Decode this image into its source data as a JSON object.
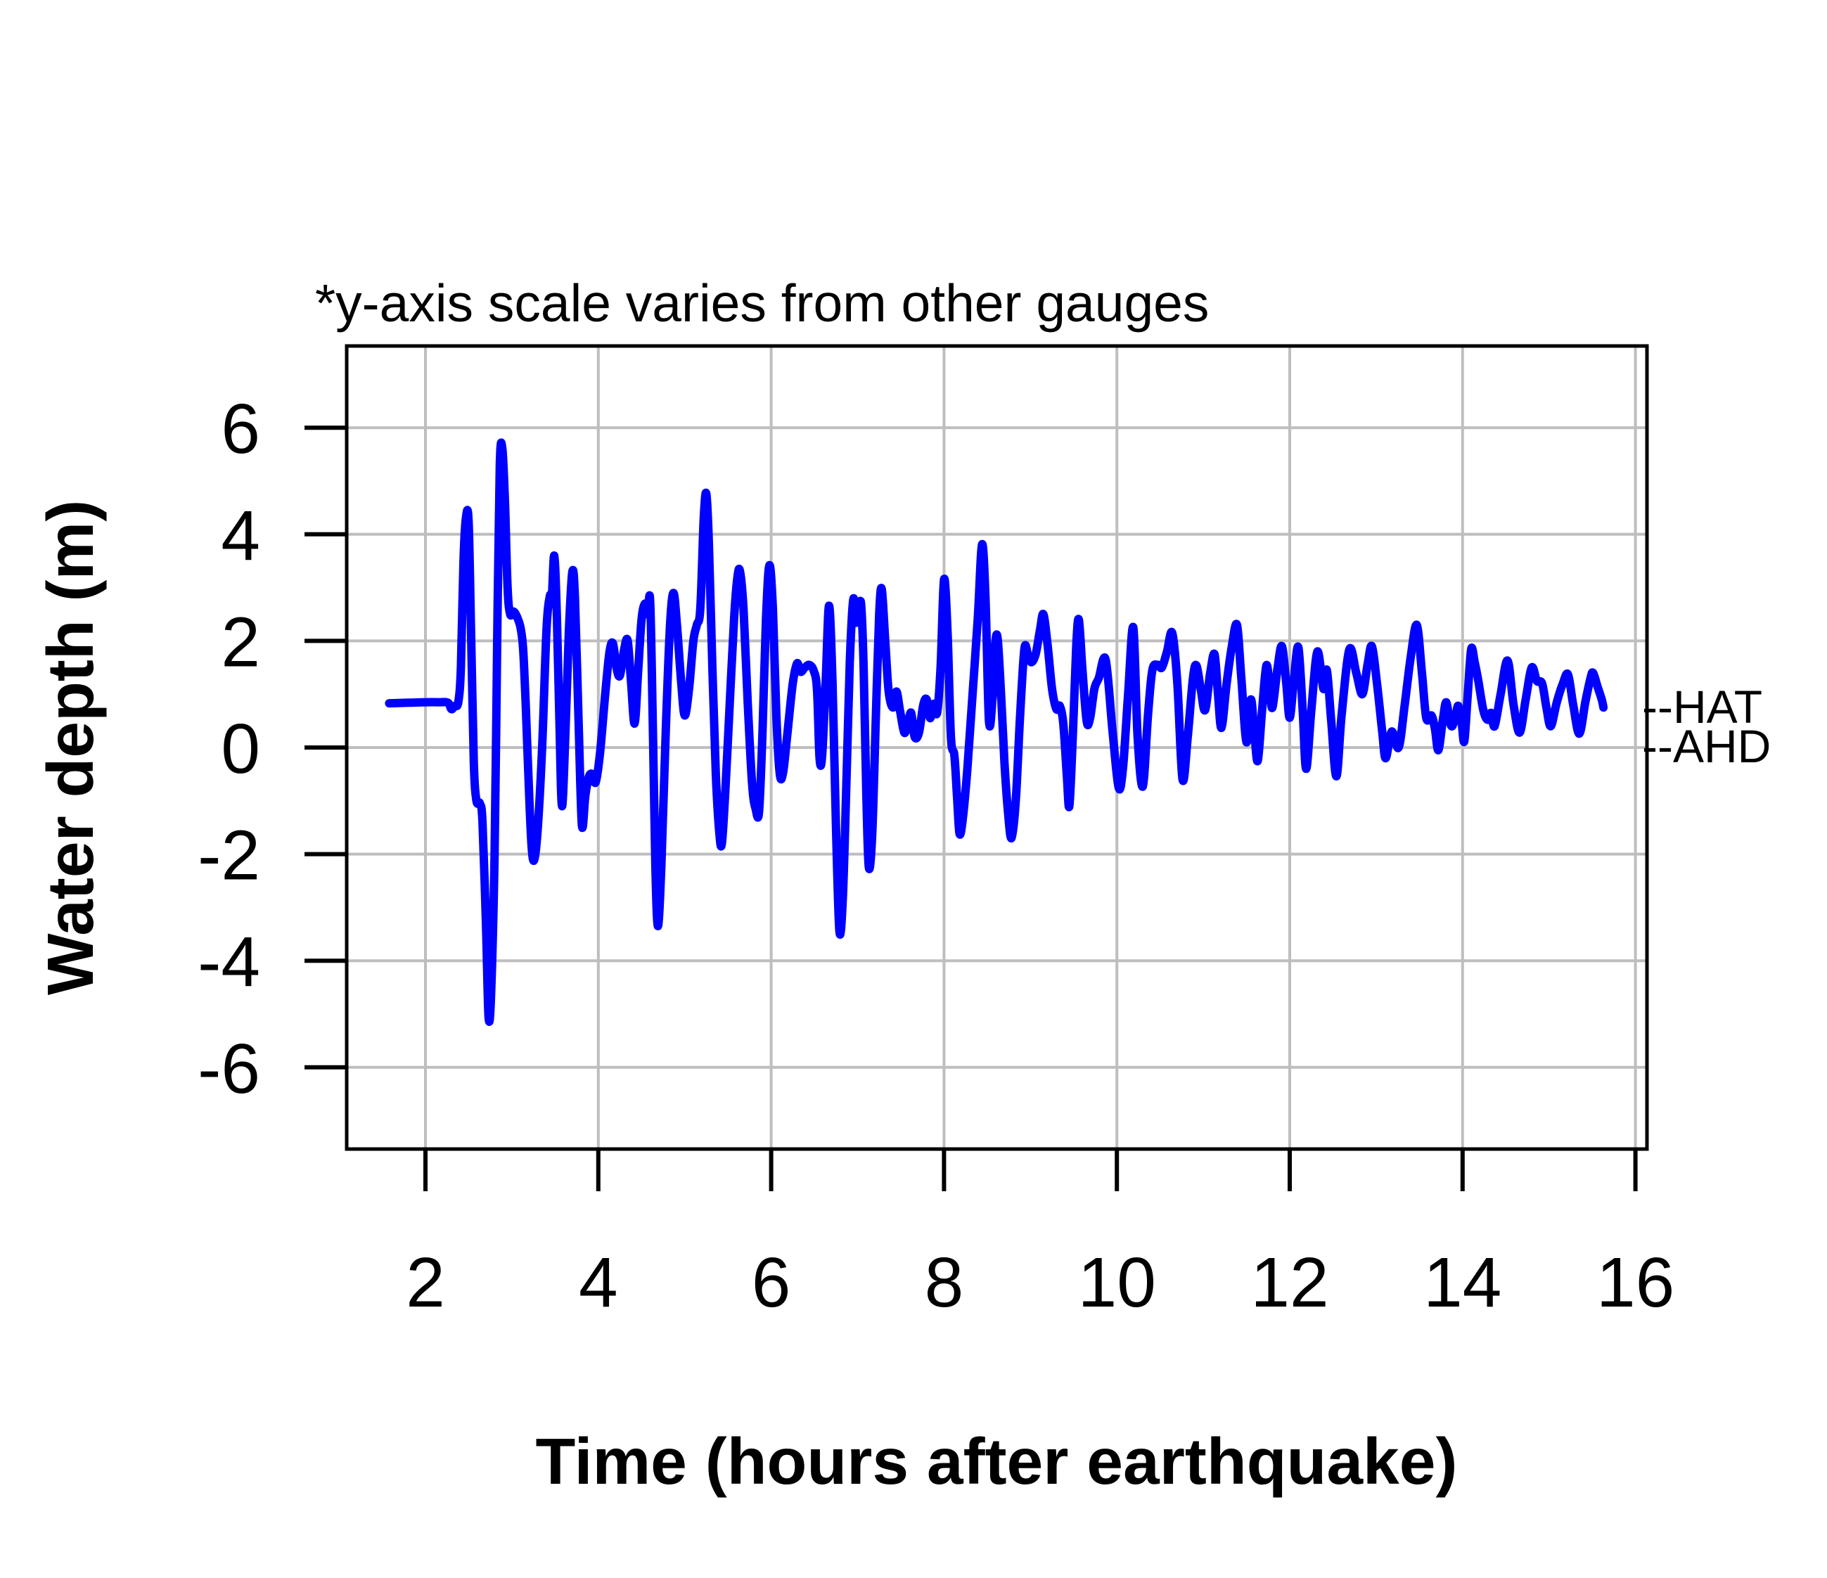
{
  "figure": {
    "annotation": "*y-axis scale varies from other gauges",
    "background": "#ffffff"
  },
  "chart_data": {
    "type": "line",
    "title": "*y-axis scale varies from other gauges",
    "xlabel": "Time (hours after earthquake)",
    "ylabel": "Water depth (m)",
    "xlim": [
      1.09,
      16.13
    ],
    "ylim": [
      -7.53,
      7.53
    ],
    "x_ticks": [
      2,
      4,
      6,
      8,
      10,
      12,
      14,
      16
    ],
    "y_ticks": [
      -6,
      -4,
      -2,
      0,
      2,
      4,
      6
    ],
    "grid": true,
    "legend_position": "none",
    "line_color": "#0000FF",
    "grid_color": "#BEBEBE",
    "axis_color": "#000000",
    "reference_levels": [
      {
        "label": "--HAT",
        "name": "hat",
        "value": 0.74
      },
      {
        "label": "--AHD",
        "name": "ahd",
        "value": 0.0
      }
    ],
    "series": [
      {
        "name": "water depth",
        "points": [
          [
            1.58,
            0.83
          ],
          [
            1.8,
            0.84
          ],
          [
            2.0,
            0.85
          ],
          [
            2.15,
            0.85
          ],
          [
            2.26,
            0.84
          ],
          [
            2.3,
            0.72
          ],
          [
            2.34,
            0.78
          ],
          [
            2.38,
            0.85
          ],
          [
            2.41,
            1.5
          ],
          [
            2.44,
            3.5
          ],
          [
            2.47,
            4.33
          ],
          [
            2.5,
            4.2
          ],
          [
            2.53,
            2.0
          ],
          [
            2.56,
            -0.3
          ],
          [
            2.59,
            -1.0
          ],
          [
            2.63,
            -1.05
          ],
          [
            2.66,
            -1.4
          ],
          [
            2.7,
            -3.3
          ],
          [
            2.73,
            -5.05
          ],
          [
            2.76,
            -4.6
          ],
          [
            2.8,
            -2.0
          ],
          [
            2.83,
            2.0
          ],
          [
            2.86,
            5.3
          ],
          [
            2.89,
            5.6
          ],
          [
            2.92,
            4.6
          ],
          [
            2.95,
            3.0
          ],
          [
            2.98,
            2.5
          ],
          [
            3.02,
            2.55
          ],
          [
            3.06,
            2.45
          ],
          [
            3.1,
            2.25
          ],
          [
            3.13,
            1.85
          ],
          [
            3.16,
            0.8
          ],
          [
            3.2,
            -0.9
          ],
          [
            3.23,
            -1.9
          ],
          [
            3.26,
            -2.1
          ],
          [
            3.3,
            -1.5
          ],
          [
            3.35,
            0.0
          ],
          [
            3.4,
            2.2
          ],
          [
            3.44,
            2.85
          ],
          [
            3.46,
            2.75
          ],
          [
            3.49,
            3.6
          ],
          [
            3.52,
            2.5
          ],
          [
            3.55,
            0.5
          ],
          [
            3.58,
            -1.1
          ],
          [
            3.62,
            0.3
          ],
          [
            3.66,
            2.2
          ],
          [
            3.7,
            3.3
          ],
          [
            3.73,
            2.8
          ],
          [
            3.77,
            0.6
          ],
          [
            3.81,
            -1.45
          ],
          [
            3.85,
            -0.9
          ],
          [
            3.89,
            -0.55
          ],
          [
            3.93,
            -0.5
          ],
          [
            3.97,
            -0.65
          ],
          [
            4.02,
            -0.1
          ],
          [
            4.08,
            1.0
          ],
          [
            4.13,
            1.8
          ],
          [
            4.17,
            1.95
          ],
          [
            4.21,
            1.5
          ],
          [
            4.25,
            1.35
          ],
          [
            4.3,
            1.85
          ],
          [
            4.34,
            2.0
          ],
          [
            4.38,
            1.2
          ],
          [
            4.42,
            0.45
          ],
          [
            4.46,
            1.4
          ],
          [
            4.5,
            2.4
          ],
          [
            4.54,
            2.7
          ],
          [
            4.57,
            2.5
          ],
          [
            4.6,
            2.75
          ],
          [
            4.63,
            0.5
          ],
          [
            4.66,
            -2.2
          ],
          [
            4.69,
            -3.35
          ],
          [
            4.73,
            -2.2
          ],
          [
            4.78,
            0.3
          ],
          [
            4.83,
            2.3
          ],
          [
            4.87,
            2.9
          ],
          [
            4.91,
            2.3
          ],
          [
            4.96,
            1.2
          ],
          [
            5.0,
            0.6
          ],
          [
            5.05,
            1.1
          ],
          [
            5.1,
            2.0
          ],
          [
            5.14,
            2.3
          ],
          [
            5.18,
            2.6
          ],
          [
            5.22,
            4.3
          ],
          [
            5.25,
            4.76
          ],
          [
            5.28,
            3.8
          ],
          [
            5.32,
            1.5
          ],
          [
            5.36,
            -0.5
          ],
          [
            5.4,
            -1.6
          ],
          [
            5.43,
            -1.8
          ],
          [
            5.47,
            -0.8
          ],
          [
            5.52,
            0.8
          ],
          [
            5.57,
            2.4
          ],
          [
            5.61,
            3.2
          ],
          [
            5.64,
            3.3
          ],
          [
            5.68,
            2.6
          ],
          [
            5.73,
            0.8
          ],
          [
            5.78,
            -0.7
          ],
          [
            5.82,
            -1.15
          ],
          [
            5.86,
            -1.2
          ],
          [
            5.9,
            0.3
          ],
          [
            5.94,
            2.4
          ],
          [
            5.98,
            3.42
          ],
          [
            6.02,
            2.6
          ],
          [
            6.06,
            0.6
          ],
          [
            6.1,
            -0.5
          ],
          [
            6.14,
            -0.45
          ],
          [
            6.19,
            0.3
          ],
          [
            6.25,
            1.2
          ],
          [
            6.3,
            1.58
          ],
          [
            6.34,
            1.42
          ],
          [
            6.39,
            1.5
          ],
          [
            6.44,
            1.55
          ],
          [
            6.49,
            1.45
          ],
          [
            6.53,
            1.1
          ],
          [
            6.56,
            -0.2
          ],
          [
            6.59,
            -0.15
          ],
          [
            6.63,
            1.2
          ],
          [
            6.67,
            2.66
          ],
          [
            6.71,
            1.2
          ],
          [
            6.75,
            -1.5
          ],
          [
            6.79,
            -3.45
          ],
          [
            6.83,
            -2.8
          ],
          [
            6.87,
            -0.7
          ],
          [
            6.91,
            1.6
          ],
          [
            6.95,
            2.78
          ],
          [
            6.98,
            2.35
          ],
          [
            7.01,
            2.5
          ],
          [
            7.04,
            2.7
          ],
          [
            7.07,
            1.5
          ],
          [
            7.1,
            -0.8
          ],
          [
            7.13,
            -2.25
          ],
          [
            7.17,
            -1.6
          ],
          [
            7.21,
            0.5
          ],
          [
            7.25,
            2.5
          ],
          [
            7.28,
            2.97
          ],
          [
            7.32,
            2.0
          ],
          [
            7.36,
            1.05
          ],
          [
            7.41,
            0.75
          ],
          [
            7.45,
            1.05
          ],
          [
            7.49,
            0.7
          ],
          [
            7.54,
            0.28
          ],
          [
            7.58,
            0.45
          ],
          [
            7.62,
            0.65
          ],
          [
            7.66,
            0.2
          ],
          [
            7.71,
            0.28
          ],
          [
            7.76,
            0.8
          ],
          [
            7.8,
            0.9
          ],
          [
            7.84,
            0.55
          ],
          [
            7.88,
            0.82
          ],
          [
            7.92,
            0.65
          ],
          [
            7.96,
            1.5
          ],
          [
            8.0,
            3.15
          ],
          [
            8.04,
            2.2
          ],
          [
            8.08,
            0.2
          ],
          [
            8.12,
            -0.15
          ],
          [
            8.15,
            -0.9
          ],
          [
            8.18,
            -1.62
          ],
          [
            8.22,
            -1.3
          ],
          [
            8.27,
            -0.4
          ],
          [
            8.33,
            1.0
          ],
          [
            8.39,
            2.4
          ],
          [
            8.44,
            3.81
          ],
          [
            8.48,
            2.8
          ],
          [
            8.52,
            0.5
          ],
          [
            8.56,
            0.9
          ],
          [
            8.59,
            1.9
          ],
          [
            8.62,
            2.05
          ],
          [
            8.66,
            1.0
          ],
          [
            8.7,
            -0.3
          ],
          [
            8.74,
            -1.2
          ],
          [
            8.78,
            -1.7
          ],
          [
            8.83,
            -1.0
          ],
          [
            8.88,
            0.6
          ],
          [
            8.93,
            1.85
          ],
          [
            8.97,
            1.75
          ],
          [
            9.01,
            1.6
          ],
          [
            9.06,
            1.75
          ],
          [
            9.11,
            2.2
          ],
          [
            9.15,
            2.5
          ],
          [
            9.2,
            1.9
          ],
          [
            9.25,
            1.1
          ],
          [
            9.3,
            0.72
          ],
          [
            9.34,
            0.78
          ],
          [
            9.38,
            0.45
          ],
          [
            9.42,
            -0.5
          ],
          [
            9.45,
            -1.1
          ],
          [
            9.49,
            0.2
          ],
          [
            9.53,
            1.9
          ],
          [
            9.56,
            2.4
          ],
          [
            9.6,
            1.5
          ],
          [
            9.65,
            0.5
          ],
          [
            9.69,
            0.55
          ],
          [
            9.74,
            1.1
          ],
          [
            9.79,
            1.3
          ],
          [
            9.87,
            1.65
          ],
          [
            9.95,
            0.3
          ],
          [
            10.02,
            -0.75
          ],
          [
            10.07,
            -0.4
          ],
          [
            10.13,
            1.0
          ],
          [
            10.19,
            2.25
          ],
          [
            10.24,
            0.2
          ],
          [
            10.3,
            -0.73
          ],
          [
            10.36,
            0.6
          ],
          [
            10.41,
            1.45
          ],
          [
            10.47,
            1.55
          ],
          [
            10.52,
            1.5
          ],
          [
            10.58,
            1.8
          ],
          [
            10.64,
            2.15
          ],
          [
            10.7,
            1.2
          ],
          [
            10.76,
            -0.6
          ],
          [
            10.82,
            0.2
          ],
          [
            10.88,
            1.3
          ],
          [
            10.92,
            1.54
          ],
          [
            10.97,
            1.1
          ],
          [
            11.02,
            0.7
          ],
          [
            11.08,
            1.4
          ],
          [
            11.13,
            1.75
          ],
          [
            11.17,
            1.0
          ],
          [
            11.21,
            0.37
          ],
          [
            11.27,
            1.2
          ],
          [
            11.33,
            1.9
          ],
          [
            11.39,
            2.3
          ],
          [
            11.44,
            1.3
          ],
          [
            11.5,
            0.1
          ],
          [
            11.55,
            0.9
          ],
          [
            11.59,
            0.3
          ],
          [
            11.63,
            -0.25
          ],
          [
            11.68,
            0.7
          ],
          [
            11.73,
            1.54
          ],
          [
            11.77,
            1.1
          ],
          [
            11.8,
            0.75
          ],
          [
            11.86,
            1.5
          ],
          [
            11.91,
            1.9
          ],
          [
            11.96,
            1.2
          ],
          [
            12.0,
            0.56
          ],
          [
            12.05,
            1.3
          ],
          [
            12.1,
            1.88
          ],
          [
            12.15,
            0.7
          ],
          [
            12.19,
            -0.4
          ],
          [
            12.25,
            0.7
          ],
          [
            12.32,
            1.8
          ],
          [
            12.39,
            1.1
          ],
          [
            12.43,
            1.45
          ],
          [
            12.48,
            0.5
          ],
          [
            12.54,
            -0.54
          ],
          [
            12.6,
            0.6
          ],
          [
            12.69,
            1.84
          ],
          [
            12.77,
            1.4
          ],
          [
            12.84,
            1.0
          ],
          [
            12.9,
            1.55
          ],
          [
            12.95,
            1.9
          ],
          [
            13.01,
            1.2
          ],
          [
            13.07,
            0.3
          ],
          [
            13.11,
            -0.2
          ],
          [
            13.18,
            0.3
          ],
          [
            13.26,
            0.0
          ],
          [
            13.33,
            0.8
          ],
          [
            13.4,
            1.7
          ],
          [
            13.47,
            2.3
          ],
          [
            13.53,
            1.4
          ],
          [
            13.58,
            0.55
          ],
          [
            13.64,
            0.6
          ],
          [
            13.68,
            0.35
          ],
          [
            13.72,
            -0.05
          ],
          [
            13.77,
            0.5
          ],
          [
            13.81,
            0.85
          ],
          [
            13.85,
            0.5
          ],
          [
            13.88,
            0.4
          ],
          [
            13.92,
            0.6
          ],
          [
            13.95,
            0.78
          ],
          [
            13.99,
            0.45
          ],
          [
            14.02,
            0.12
          ],
          [
            14.06,
            1.0
          ],
          [
            14.1,
            1.85
          ],
          [
            14.14,
            1.6
          ],
          [
            14.18,
            1.27
          ],
          [
            14.24,
            0.7
          ],
          [
            14.29,
            0.52
          ],
          [
            14.33,
            0.65
          ],
          [
            14.37,
            0.4
          ],
          [
            14.44,
            1.0
          ],
          [
            14.52,
            1.63
          ],
          [
            14.59,
            0.8
          ],
          [
            14.66,
            0.28
          ],
          [
            14.73,
            0.9
          ],
          [
            14.8,
            1.5
          ],
          [
            14.86,
            1.25
          ],
          [
            14.92,
            1.2
          ],
          [
            14.97,
            0.75
          ],
          [
            15.02,
            0.4
          ],
          [
            15.09,
            0.85
          ],
          [
            15.16,
            1.2
          ],
          [
            15.22,
            1.37
          ],
          [
            15.28,
            0.8
          ],
          [
            15.35,
            0.26
          ],
          [
            15.42,
            0.85
          ],
          [
            15.48,
            1.3
          ],
          [
            15.51,
            1.4
          ],
          [
            15.56,
            1.15
          ],
          [
            15.61,
            0.9
          ],
          [
            15.63,
            0.75
          ]
        ]
      }
    ]
  }
}
